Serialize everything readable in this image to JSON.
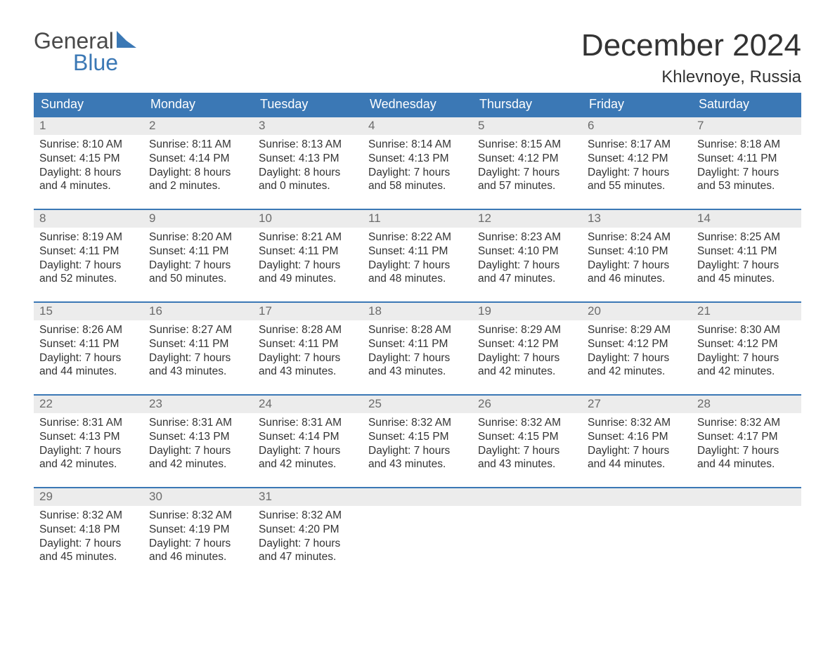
{
  "logo": {
    "text1": "General",
    "text2": "Blue",
    "color1": "#4a4a4a",
    "color2": "#3b78b5",
    "tri_color": "#3b78b5"
  },
  "title": "December 2024",
  "location": "Khlevnoye, Russia",
  "styling": {
    "header_bg": "#3b78b5",
    "header_fg": "#ffffff",
    "daynum_bg": "#ececec",
    "daynum_fg": "#6b6b6b",
    "week_border": "#3b78b5",
    "body_fg": "#333333",
    "title_fontsize": 44,
    "location_fontsize": 24,
    "dayhead_fontsize": 18,
    "body_fontsize": 15.5
  },
  "dayheads": [
    "Sunday",
    "Monday",
    "Tuesday",
    "Wednesday",
    "Thursday",
    "Friday",
    "Saturday"
  ],
  "weeks": [
    [
      {
        "n": "1",
        "sr": "Sunrise: 8:10 AM",
        "ss": "Sunset: 4:15 PM",
        "d1": "Daylight: 8 hours",
        "d2": "and 4 minutes."
      },
      {
        "n": "2",
        "sr": "Sunrise: 8:11 AM",
        "ss": "Sunset: 4:14 PM",
        "d1": "Daylight: 8 hours",
        "d2": "and 2 minutes."
      },
      {
        "n": "3",
        "sr": "Sunrise: 8:13 AM",
        "ss": "Sunset: 4:13 PM",
        "d1": "Daylight: 8 hours",
        "d2": "and 0 minutes."
      },
      {
        "n": "4",
        "sr": "Sunrise: 8:14 AM",
        "ss": "Sunset: 4:13 PM",
        "d1": "Daylight: 7 hours",
        "d2": "and 58 minutes."
      },
      {
        "n": "5",
        "sr": "Sunrise: 8:15 AM",
        "ss": "Sunset: 4:12 PM",
        "d1": "Daylight: 7 hours",
        "d2": "and 57 minutes."
      },
      {
        "n": "6",
        "sr": "Sunrise: 8:17 AM",
        "ss": "Sunset: 4:12 PM",
        "d1": "Daylight: 7 hours",
        "d2": "and 55 minutes."
      },
      {
        "n": "7",
        "sr": "Sunrise: 8:18 AM",
        "ss": "Sunset: 4:11 PM",
        "d1": "Daylight: 7 hours",
        "d2": "and 53 minutes."
      }
    ],
    [
      {
        "n": "8",
        "sr": "Sunrise: 8:19 AM",
        "ss": "Sunset: 4:11 PM",
        "d1": "Daylight: 7 hours",
        "d2": "and 52 minutes."
      },
      {
        "n": "9",
        "sr": "Sunrise: 8:20 AM",
        "ss": "Sunset: 4:11 PM",
        "d1": "Daylight: 7 hours",
        "d2": "and 50 minutes."
      },
      {
        "n": "10",
        "sr": "Sunrise: 8:21 AM",
        "ss": "Sunset: 4:11 PM",
        "d1": "Daylight: 7 hours",
        "d2": "and 49 minutes."
      },
      {
        "n": "11",
        "sr": "Sunrise: 8:22 AM",
        "ss": "Sunset: 4:11 PM",
        "d1": "Daylight: 7 hours",
        "d2": "and 48 minutes."
      },
      {
        "n": "12",
        "sr": "Sunrise: 8:23 AM",
        "ss": "Sunset: 4:10 PM",
        "d1": "Daylight: 7 hours",
        "d2": "and 47 minutes."
      },
      {
        "n": "13",
        "sr": "Sunrise: 8:24 AM",
        "ss": "Sunset: 4:10 PM",
        "d1": "Daylight: 7 hours",
        "d2": "and 46 minutes."
      },
      {
        "n": "14",
        "sr": "Sunrise: 8:25 AM",
        "ss": "Sunset: 4:11 PM",
        "d1": "Daylight: 7 hours",
        "d2": "and 45 minutes."
      }
    ],
    [
      {
        "n": "15",
        "sr": "Sunrise: 8:26 AM",
        "ss": "Sunset: 4:11 PM",
        "d1": "Daylight: 7 hours",
        "d2": "and 44 minutes."
      },
      {
        "n": "16",
        "sr": "Sunrise: 8:27 AM",
        "ss": "Sunset: 4:11 PM",
        "d1": "Daylight: 7 hours",
        "d2": "and 43 minutes."
      },
      {
        "n": "17",
        "sr": "Sunrise: 8:28 AM",
        "ss": "Sunset: 4:11 PM",
        "d1": "Daylight: 7 hours",
        "d2": "and 43 minutes."
      },
      {
        "n": "18",
        "sr": "Sunrise: 8:28 AM",
        "ss": "Sunset: 4:11 PM",
        "d1": "Daylight: 7 hours",
        "d2": "and 43 minutes."
      },
      {
        "n": "19",
        "sr": "Sunrise: 8:29 AM",
        "ss": "Sunset: 4:12 PM",
        "d1": "Daylight: 7 hours",
        "d2": "and 42 minutes."
      },
      {
        "n": "20",
        "sr": "Sunrise: 8:29 AM",
        "ss": "Sunset: 4:12 PM",
        "d1": "Daylight: 7 hours",
        "d2": "and 42 minutes."
      },
      {
        "n": "21",
        "sr": "Sunrise: 8:30 AM",
        "ss": "Sunset: 4:12 PM",
        "d1": "Daylight: 7 hours",
        "d2": "and 42 minutes."
      }
    ],
    [
      {
        "n": "22",
        "sr": "Sunrise: 8:31 AM",
        "ss": "Sunset: 4:13 PM",
        "d1": "Daylight: 7 hours",
        "d2": "and 42 minutes."
      },
      {
        "n": "23",
        "sr": "Sunrise: 8:31 AM",
        "ss": "Sunset: 4:13 PM",
        "d1": "Daylight: 7 hours",
        "d2": "and 42 minutes."
      },
      {
        "n": "24",
        "sr": "Sunrise: 8:31 AM",
        "ss": "Sunset: 4:14 PM",
        "d1": "Daylight: 7 hours",
        "d2": "and 42 minutes."
      },
      {
        "n": "25",
        "sr": "Sunrise: 8:32 AM",
        "ss": "Sunset: 4:15 PM",
        "d1": "Daylight: 7 hours",
        "d2": "and 43 minutes."
      },
      {
        "n": "26",
        "sr": "Sunrise: 8:32 AM",
        "ss": "Sunset: 4:15 PM",
        "d1": "Daylight: 7 hours",
        "d2": "and 43 minutes."
      },
      {
        "n": "27",
        "sr": "Sunrise: 8:32 AM",
        "ss": "Sunset: 4:16 PM",
        "d1": "Daylight: 7 hours",
        "d2": "and 44 minutes."
      },
      {
        "n": "28",
        "sr": "Sunrise: 8:32 AM",
        "ss": "Sunset: 4:17 PM",
        "d1": "Daylight: 7 hours",
        "d2": "and 44 minutes."
      }
    ],
    [
      {
        "n": "29",
        "sr": "Sunrise: 8:32 AM",
        "ss": "Sunset: 4:18 PM",
        "d1": "Daylight: 7 hours",
        "d2": "and 45 minutes."
      },
      {
        "n": "30",
        "sr": "Sunrise: 8:32 AM",
        "ss": "Sunset: 4:19 PM",
        "d1": "Daylight: 7 hours",
        "d2": "and 46 minutes."
      },
      {
        "n": "31",
        "sr": "Sunrise: 8:32 AM",
        "ss": "Sunset: 4:20 PM",
        "d1": "Daylight: 7 hours",
        "d2": "and 47 minutes."
      },
      {
        "empty": true
      },
      {
        "empty": true
      },
      {
        "empty": true
      },
      {
        "empty": true
      }
    ]
  ]
}
